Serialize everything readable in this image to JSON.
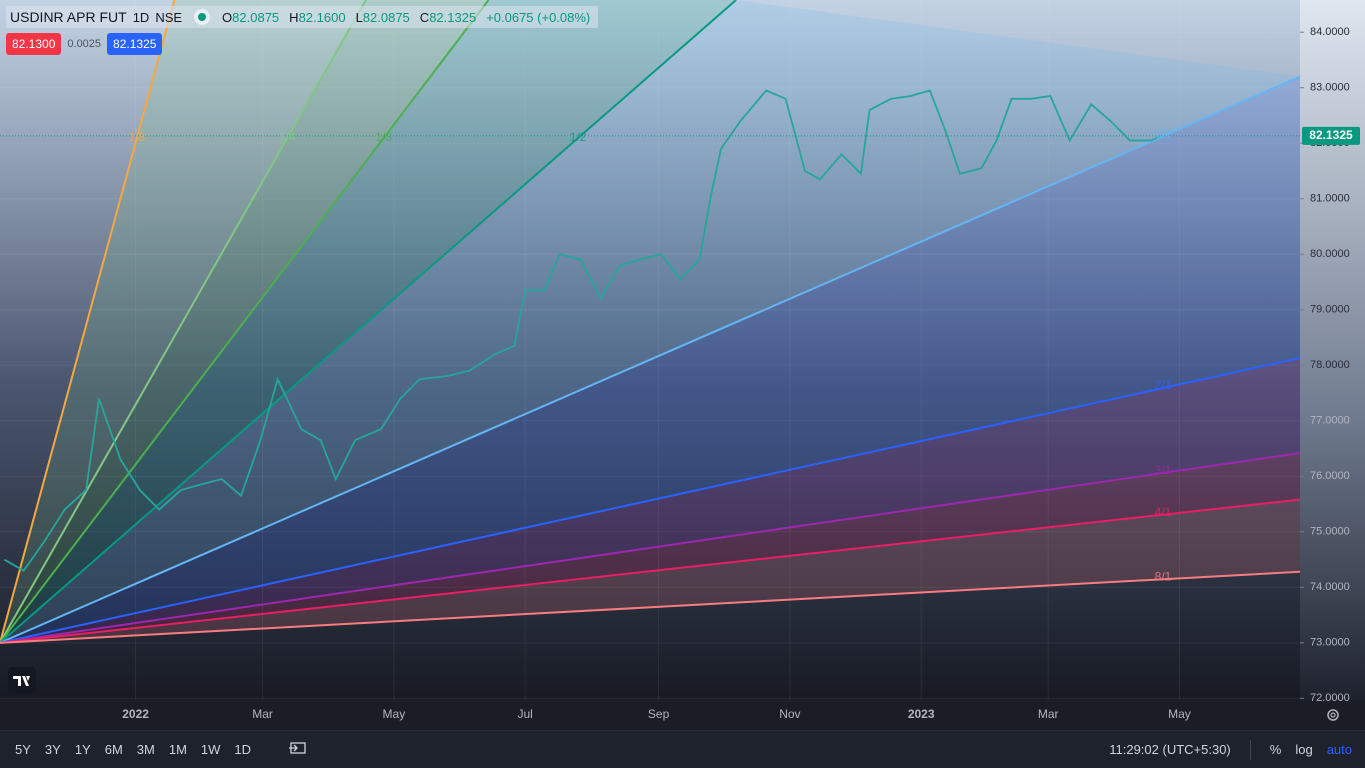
{
  "header": {
    "symbol": "USDINR APR FUT",
    "interval": "1D",
    "exchange": "NSE",
    "open_label": "O",
    "open": "82.0875",
    "high_label": "H",
    "high": "82.1600",
    "low_label": "L",
    "low": "82.0875",
    "close_label": "C",
    "close": "82.1325",
    "change": "+0.0675 (+0.08%)",
    "bid": "82.1300",
    "spread": "0.0025",
    "ask": "82.1325"
  },
  "chart_data": {
    "type": "line",
    "x": [
      -61,
      -52,
      -42,
      -33,
      -23,
      -17,
      -7,
      2,
      11,
      21,
      30,
      40,
      49,
      58,
      66,
      77,
      86,
      93,
      102,
      114,
      123,
      132,
      144,
      155,
      167,
      176,
      181,
      190,
      197,
      207,
      216,
      225,
      234,
      244,
      253,
      262,
      267,
      272,
      281,
      293,
      302,
      311,
      318,
      328,
      337,
      341,
      351,
      360,
      369,
      376,
      383,
      393,
      400,
      407,
      416,
      425,
      434,
      444,
      453,
      462,
      472,
      476
    ],
    "values": [
      74.5,
      74.3,
      74.85,
      75.4,
      75.75,
      77.4,
      76.3,
      75.75,
      75.4,
      75.75,
      75.85,
      75.95,
      75.65,
      76.65,
      77.75,
      76.85,
      76.65,
      75.95,
      76.65,
      76.85,
      77.4,
      77.75,
      77.8,
      77.9,
      78.2,
      78.35,
      79.35,
      79.35,
      80.0,
      79.9,
      79.2,
      79.8,
      79.9,
      80.0,
      79.55,
      79.9,
      81.0,
      81.9,
      82.4,
      82.95,
      82.8,
      81.5,
      81.35,
      81.8,
      81.45,
      82.6,
      82.8,
      82.85,
      82.95,
      82.25,
      81.45,
      81.55,
      82.05,
      82.8,
      82.8,
      82.85,
      82.05,
      82.7,
      82.4,
      82.05,
      82.05,
      82.13
    ],
    "color": "#26a69a",
    "xlim": [
      -63,
      541
    ],
    "xticks": [
      {
        "value": 0,
        "label": "2022"
      },
      {
        "value": 59,
        "label": "Mar"
      },
      {
        "value": 120,
        "label": "May"
      },
      {
        "value": 181,
        "label": "Jul"
      },
      {
        "value": 243,
        "label": "Sep"
      },
      {
        "value": 304,
        "label": "Nov"
      },
      {
        "value": 365,
        "label": "2023"
      },
      {
        "value": 424,
        "label": "Mar"
      },
      {
        "value": 485,
        "label": "May"
      }
    ],
    "ylim": [
      71.97,
      84.58
    ],
    "yticks": [
      {
        "value": 72,
        "label": "72.0000"
      },
      {
        "value": 73,
        "label": "73.0000"
      },
      {
        "value": 74,
        "label": "74.0000"
      },
      {
        "value": 75,
        "label": "75.0000"
      },
      {
        "value": 76,
        "label": "76.0000"
      },
      {
        "value": 77,
        "label": "77.0000"
      },
      {
        "value": 78,
        "label": "78.0000"
      },
      {
        "value": 79,
        "label": "79.0000"
      },
      {
        "value": 80,
        "label": "80.0000"
      },
      {
        "value": 81,
        "label": "81.0000"
      },
      {
        "value": 82,
        "label": "82.0000"
      },
      {
        "value": 83,
        "label": "83.0000"
      },
      {
        "value": 84,
        "label": "84.0000"
      }
    ],
    "last_price": 82.1325,
    "fan_origin": [
      -63,
      73.0
    ],
    "fan": [
      {
        "name": "1/8",
        "color": "#f5a742",
        "end": [
          18,
          84.58
        ]
      },
      {
        "name": "1/4",
        "color": "#81c784",
        "end": [
          107,
          84.58
        ]
      },
      {
        "name": "1/3",
        "color": "#4caf50",
        "end": [
          164,
          84.58
        ]
      },
      {
        "name": "1/2",
        "color": "#089981",
        "end": [
          279,
          84.58
        ]
      },
      {
        "name": "1/1",
        "color": "#64b5f6",
        "end": [
          541,
          83.2
        ]
      },
      {
        "name": "2/1",
        "color": "#2962ff",
        "end": [
          541,
          78.13
        ]
      },
      {
        "name": "3/1",
        "color": "#9c27b0",
        "end": [
          541,
          76.42
        ]
      },
      {
        "name": "4/1",
        "color": "#e91e63",
        "end": [
          541,
          75.58
        ]
      },
      {
        "name": "8/1",
        "color": "#f77c80",
        "end": [
          541,
          74.28
        ]
      }
    ]
  },
  "toolbar": {
    "ranges": [
      "5Y",
      "3Y",
      "1Y",
      "6M",
      "3M",
      "1M",
      "1W",
      "1D"
    ],
    "time": "11:29:02 (UTC+5:30)",
    "percent": "%",
    "log": "log",
    "auto": "auto"
  }
}
